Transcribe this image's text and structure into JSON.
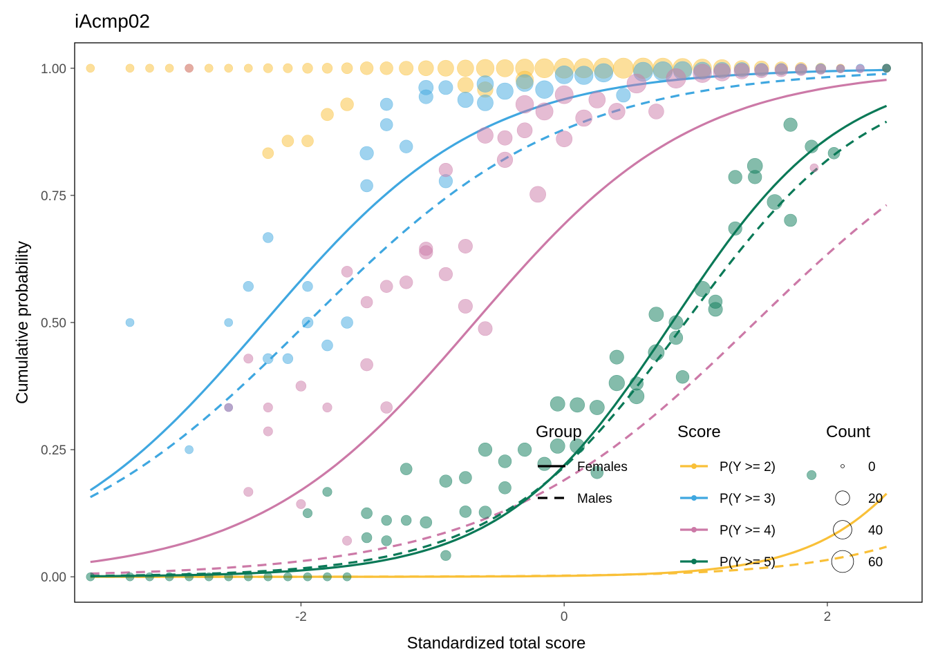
{
  "chart_data": {
    "type": "scatter",
    "title": "iAcmp02",
    "xlabel": "Standardized total score",
    "ylabel": "Cumulative probability",
    "xlim": [
      -3.72,
      2.72
    ],
    "ylim": [
      -0.05,
      1.05
    ],
    "x_ticks": [
      {
        "value": -2,
        "label": "-2"
      },
      {
        "value": 0,
        "label": "0"
      },
      {
        "value": 2,
        "label": "2"
      }
    ],
    "y_ticks": [
      {
        "value": 0,
        "label": "0.00"
      },
      {
        "value": 0.25,
        "label": "0.25"
      },
      {
        "value": 0.5,
        "label": "0.50"
      },
      {
        "value": 0.75,
        "label": "0.75"
      },
      {
        "value": 1,
        "label": "1.00"
      }
    ],
    "grid": false,
    "legend_position": "bottom-right, inside plot",
    "legend": {
      "group_title": "Group",
      "group_items": [
        {
          "label": "Females",
          "linetype": "solid"
        },
        {
          "label": "Males",
          "linetype": "dashed"
        }
      ],
      "score_title": "Score",
      "count_title": "Count",
      "count_items": [
        {
          "label": "0",
          "value": 0
        },
        {
          "label": "20",
          "value": 20
        },
        {
          "label": "40",
          "value": 40
        },
        {
          "label": "60",
          "value": 60
        }
      ]
    },
    "series": [
      {
        "name": "P(Y >= 2)",
        "color": "#F9C038",
        "curves": {
          "Females": {
            "a": 1.92,
            "b": 3.3
          },
          "Males": {
            "a": 1.35,
            "b": 4.5
          }
        },
        "points": [
          [
            -3.6,
            1.0,
            4
          ],
          [
            -3.3,
            1.0,
            4
          ],
          [
            -3.15,
            1.0,
            4
          ],
          [
            -3.0,
            1.0,
            4
          ],
          [
            -2.85,
            1.0,
            4
          ],
          [
            -2.7,
            1.0,
            4
          ],
          [
            -2.55,
            1.0,
            4
          ],
          [
            -2.4,
            1.0,
            4
          ],
          [
            -2.25,
            1.0,
            6
          ],
          [
            -2.1,
            1.0,
            6
          ],
          [
            -1.95,
            1.0,
            8
          ],
          [
            -1.8,
            1.0,
            8
          ],
          [
            -1.65,
            1.0,
            10
          ],
          [
            -1.5,
            1.0,
            16
          ],
          [
            -1.35,
            1.0,
            16
          ],
          [
            -1.2,
            1.0,
            20
          ],
          [
            -1.05,
            1.0,
            24
          ],
          [
            -0.9,
            1.0,
            28
          ],
          [
            -0.75,
            1.0,
            30
          ],
          [
            -0.6,
            1.0,
            36
          ],
          [
            -0.45,
            1.0,
            34
          ],
          [
            -0.3,
            1.0,
            40
          ],
          [
            -0.15,
            1.0,
            44
          ],
          [
            0.0,
            1.0,
            48
          ],
          [
            0.15,
            1.0,
            46
          ],
          [
            0.3,
            1.0,
            50
          ],
          [
            0.45,
            1.0,
            50
          ],
          [
            0.6,
            1.0,
            52
          ],
          [
            0.75,
            1.0,
            50
          ],
          [
            0.9,
            1.0,
            46
          ],
          [
            1.05,
            1.0,
            40
          ],
          [
            1.2,
            1.0,
            34
          ],
          [
            1.35,
            1.0,
            26
          ],
          [
            1.5,
            1.0,
            22
          ],
          [
            1.65,
            1.0,
            16
          ],
          [
            1.8,
            1.0,
            12
          ],
          [
            1.95,
            1.0,
            8
          ],
          [
            2.1,
            1.0,
            4
          ],
          [
            2.45,
            1.0,
            4
          ],
          [
            -2.25,
            0.833,
            10
          ],
          [
            -2.1,
            0.857,
            12
          ],
          [
            -1.95,
            0.857,
            12
          ],
          [
            -1.8,
            0.909,
            14
          ],
          [
            -1.65,
            0.929,
            16
          ],
          [
            -0.6,
            0.958,
            26
          ],
          [
            -0.75,
            0.967,
            26
          ],
          [
            -0.3,
            0.977,
            36
          ]
        ]
      },
      {
        "name": "P(Y >= 3)",
        "color": "#3FA7E0",
        "curves": {
          "Females": {
            "a": 1.2,
            "b": -2.28
          },
          "Males": {
            "a": 1.02,
            "b": -1.95
          }
        },
        "points": [
          [
            -3.3,
            0.5,
            4
          ],
          [
            -2.85,
            0.25,
            4
          ],
          [
            -2.55,
            0.333,
            4
          ],
          [
            -2.55,
            0.5,
            4
          ],
          [
            -2.4,
            0.571,
            8
          ],
          [
            -2.25,
            0.667,
            8
          ],
          [
            -2.25,
            0.429,
            8
          ],
          [
            -2.1,
            0.429,
            8
          ],
          [
            -1.95,
            0.571,
            8
          ],
          [
            -1.95,
            0.5,
            10
          ],
          [
            -1.8,
            0.455,
            10
          ],
          [
            -1.65,
            0.5,
            12
          ],
          [
            -1.5,
            0.769,
            14
          ],
          [
            -1.5,
            0.833,
            18
          ],
          [
            -1.35,
            0.889,
            14
          ],
          [
            -1.35,
            0.929,
            14
          ],
          [
            -1.2,
            0.846,
            16
          ],
          [
            -1.05,
            0.944,
            20
          ],
          [
            -1.05,
            0.962,
            22
          ],
          [
            -0.9,
            0.962,
            20
          ],
          [
            -0.9,
            0.778,
            18
          ],
          [
            -0.75,
            0.938,
            26
          ],
          [
            -0.6,
            0.932,
            28
          ],
          [
            -0.6,
            0.969,
            30
          ],
          [
            -0.45,
            0.955,
            30
          ],
          [
            -0.3,
            0.971,
            32
          ],
          [
            -0.15,
            0.958,
            36
          ],
          [
            0.0,
            0.987,
            38
          ],
          [
            0.15,
            0.986,
            40
          ],
          [
            0.3,
            0.991,
            40
          ],
          [
            0.45,
            0.947,
            20
          ],
          [
            0.6,
            0.993,
            44
          ],
          [
            0.75,
            0.994,
            44
          ],
          [
            0.9,
            0.995,
            40
          ],
          [
            1.05,
            0.995,
            34
          ],
          [
            1.2,
            0.996,
            28
          ],
          [
            1.35,
            0.997,
            22
          ],
          [
            1.5,
            0.997,
            16
          ],
          [
            1.65,
            0.998,
            12
          ],
          [
            1.8,
            0.998,
            10
          ],
          [
            1.95,
            0.999,
            8
          ],
          [
            2.1,
            0.999,
            4
          ],
          [
            2.25,
            1.0,
            4
          ],
          [
            2.45,
            1.0,
            4
          ]
        ]
      },
      {
        "name": "P(Y >= 4)",
        "color": "#CC79A7",
        "curves": {
          "Females": {
            "a": 1.2,
            "b": -0.68
          },
          "Males": {
            "a": 1.0,
            "b": 1.45
          }
        },
        "points": [
          [
            -2.85,
            1.0,
            4
          ],
          [
            -2.55,
            0.333,
            4
          ],
          [
            -2.4,
            0.429,
            6
          ],
          [
            -2.4,
            0.167,
            6
          ],
          [
            -2.25,
            0.333,
            6
          ],
          [
            -2.25,
            0.286,
            6
          ],
          [
            -2.0,
            0.375,
            8
          ],
          [
            -2.0,
            0.143,
            6
          ],
          [
            -1.8,
            0.333,
            6
          ],
          [
            -1.65,
            0.6,
            10
          ],
          [
            -1.65,
            0.071,
            6
          ],
          [
            -1.5,
            0.54,
            12
          ],
          [
            -1.5,
            0.417,
            14
          ],
          [
            -1.35,
            0.571,
            14
          ],
          [
            -1.35,
            0.333,
            12
          ],
          [
            -1.2,
            0.579,
            16
          ],
          [
            -1.05,
            0.645,
            18
          ],
          [
            -1.05,
            0.638,
            18
          ],
          [
            -0.9,
            0.8,
            18
          ],
          [
            -0.9,
            0.595,
            18
          ],
          [
            -0.75,
            0.65,
            20
          ],
          [
            -0.75,
            0.532,
            20
          ],
          [
            -0.6,
            0.488,
            20
          ],
          [
            -0.6,
            0.868,
            28
          ],
          [
            -0.45,
            0.82,
            26
          ],
          [
            -0.45,
            0.863,
            22
          ],
          [
            -0.3,
            0.929,
            36
          ],
          [
            -0.3,
            0.878,
            24
          ],
          [
            -0.2,
            0.752,
            28
          ],
          [
            -0.15,
            0.915,
            34
          ],
          [
            0.0,
            0.948,
            38
          ],
          [
            0.0,
            0.861,
            28
          ],
          [
            0.15,
            0.902,
            30
          ],
          [
            0.25,
            0.938,
            30
          ],
          [
            0.4,
            0.915,
            30
          ],
          [
            0.55,
            0.97,
            44
          ],
          [
            0.7,
            0.915,
            24
          ],
          [
            0.85,
            0.98,
            46
          ],
          [
            1.05,
            0.99,
            40
          ],
          [
            1.2,
            0.992,
            34
          ],
          [
            1.35,
            0.994,
            26
          ],
          [
            1.5,
            0.995,
            20
          ],
          [
            1.65,
            0.996,
            16
          ],
          [
            1.8,
            0.997,
            12
          ],
          [
            1.9,
            0.804,
            4
          ],
          [
            1.95,
            0.998,
            8
          ],
          [
            2.1,
            0.999,
            4
          ],
          [
            2.25,
            0.999,
            4
          ],
          [
            2.45,
            1.0,
            4
          ]
        ]
      },
      {
        "name": "P(Y >= 5)",
        "color": "#0A7957",
        "curves": {
          "Females": {
            "a": 1.55,
            "b": 0.82
          },
          "Males": {
            "a": 1.4,
            "b": 0.92
          }
        },
        "points": [
          [
            -3.6,
            0.0,
            4
          ],
          [
            -3.3,
            0.0,
            4
          ],
          [
            -3.15,
            0.0,
            4
          ],
          [
            -3.0,
            0.0,
            4
          ],
          [
            -2.85,
            0.0,
            4
          ],
          [
            -2.7,
            0.0,
            4
          ],
          [
            -2.55,
            0.0,
            4
          ],
          [
            -2.4,
            0.0,
            4
          ],
          [
            -2.25,
            0.0,
            4
          ],
          [
            -2.1,
            0.0,
            4
          ],
          [
            -1.95,
            0.0,
            4
          ],
          [
            -1.8,
            0.0,
            4
          ],
          [
            -1.65,
            0.0,
            4
          ],
          [
            -1.95,
            0.125,
            6
          ],
          [
            -1.8,
            0.167,
            6
          ],
          [
            -1.5,
            0.125,
            10
          ],
          [
            -1.5,
            0.077,
            8
          ],
          [
            -1.35,
            0.111,
            8
          ],
          [
            -1.35,
            0.071,
            8
          ],
          [
            -1.2,
            0.212,
            12
          ],
          [
            -1.2,
            0.111,
            8
          ],
          [
            -1.05,
            0.107,
            12
          ],
          [
            -0.9,
            0.188,
            14
          ],
          [
            -0.9,
            0.042,
            8
          ],
          [
            -0.75,
            0.195,
            14
          ],
          [
            -0.75,
            0.128,
            12
          ],
          [
            -0.6,
            0.25,
            18
          ],
          [
            -0.6,
            0.127,
            14
          ],
          [
            -0.45,
            0.227,
            16
          ],
          [
            -0.45,
            0.175,
            14
          ],
          [
            -0.3,
            0.25,
            18
          ],
          [
            -0.15,
            0.222,
            18
          ],
          [
            -0.05,
            0.34,
            22
          ],
          [
            -0.05,
            0.257,
            22
          ],
          [
            0.1,
            0.338,
            22
          ],
          [
            0.1,
            0.257,
            22
          ],
          [
            0.25,
            0.333,
            22
          ],
          [
            0.25,
            0.205,
            14
          ],
          [
            0.4,
            0.432,
            20
          ],
          [
            0.4,
            0.381,
            26
          ],
          [
            0.55,
            0.38,
            18
          ],
          [
            0.55,
            0.355,
            24
          ],
          [
            0.7,
            0.441,
            28
          ],
          [
            0.7,
            0.516,
            22
          ],
          [
            0.85,
            0.5,
            20
          ],
          [
            0.85,
            0.47,
            18
          ],
          [
            0.9,
            0.393,
            16
          ],
          [
            1.05,
            0.566,
            26
          ],
          [
            1.15,
            0.526,
            20
          ],
          [
            1.15,
            0.541,
            18
          ],
          [
            1.3,
            0.685,
            18
          ],
          [
            1.3,
            0.786,
            18
          ],
          [
            1.45,
            0.808,
            24
          ],
          [
            1.45,
            0.786,
            18
          ],
          [
            1.6,
            0.737,
            24
          ],
          [
            1.72,
            0.701,
            14
          ],
          [
            1.72,
            0.889,
            18
          ],
          [
            1.88,
            0.2,
            6
          ],
          [
            1.88,
            0.846,
            16
          ],
          [
            2.05,
            0.833,
            12
          ],
          [
            2.45,
            1.0,
            4
          ]
        ]
      }
    ]
  }
}
